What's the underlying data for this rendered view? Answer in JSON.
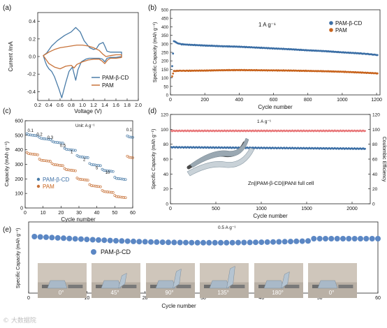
{
  "chart_data": [
    {
      "panel": "(a)",
      "type": "line",
      "xlabel": "Voltage (V)",
      "ylabel": "Current /mA",
      "xlim": [
        0.2,
        2.0
      ],
      "ylim": [
        -0.5,
        0.5
      ],
      "xticks": [
        "0.2",
        "0.4",
        "0.6",
        "0.8",
        "1.0",
        "1.2",
        "1.4",
        "1.6",
        "1.8",
        "2.0"
      ],
      "yticks": [
        "-0.4",
        "-0.2",
        "0.0",
        "0.2",
        "0.4"
      ],
      "legend": "bottom-right",
      "series": [
        {
          "name": "PAM-β-CD",
          "color": "#4a7ca8",
          "x": [
            0.3,
            0.36,
            0.45,
            0.55,
            0.68,
            0.8,
            0.88,
            0.96,
            1.03,
            1.08,
            1.13,
            1.2,
            1.25,
            1.3,
            1.37,
            1.4,
            1.44,
            1.5,
            1.6,
            1.7,
            1.7,
            1.6,
            1.5,
            1.44,
            1.4,
            1.36,
            1.3,
            1.24,
            1.18,
            1.12,
            1.06,
            0.98,
            0.92,
            0.88,
            0.82,
            0.76,
            0.7,
            0.63,
            0.58,
            0.54,
            0.5,
            0.45,
            0.4,
            0.36,
            0.33,
            0.3
          ],
          "y": [
            0.01,
            0.04,
            0.12,
            0.18,
            0.24,
            0.28,
            0.33,
            0.28,
            0.18,
            0.14,
            0.1,
            0.08,
            0.09,
            0.14,
            0.16,
            0.12,
            0.06,
            0.05,
            0.05,
            0.05,
            0.0,
            -0.01,
            -0.01,
            -0.02,
            -0.06,
            -0.03,
            -0.02,
            -0.02,
            -0.02,
            -0.02,
            -0.03,
            -0.06,
            -0.15,
            -0.27,
            -0.12,
            -0.17,
            -0.3,
            -0.47,
            -0.37,
            -0.3,
            -0.23,
            -0.17,
            -0.14,
            -0.1,
            -0.05,
            0.01
          ]
        },
        {
          "name": "PAM",
          "color": "#c8733a",
          "x": [
            0.3,
            0.4,
            0.5,
            0.6,
            0.7,
            0.8,
            0.9,
            1.0,
            1.1,
            1.2,
            1.3,
            1.36,
            1.42,
            1.5,
            1.6,
            1.7,
            1.7,
            1.6,
            1.5,
            1.45,
            1.4,
            1.35,
            1.3,
            1.2,
            1.1,
            1.0,
            0.9,
            0.85,
            0.8,
            0.7,
            0.6,
            0.5,
            0.4,
            0.3
          ],
          "y": [
            0.01,
            0.05,
            0.08,
            0.1,
            0.11,
            0.12,
            0.13,
            0.13,
            0.12,
            0.1,
            0.07,
            0.03,
            0.0,
            0.01,
            0.02,
            0.02,
            -0.01,
            -0.02,
            -0.02,
            -0.04,
            -0.08,
            -0.05,
            -0.03,
            -0.03,
            -0.04,
            -0.06,
            -0.09,
            -0.13,
            -0.1,
            -0.11,
            -0.14,
            -0.12,
            -0.08,
            0.01
          ]
        }
      ]
    },
    {
      "panel": "(b)",
      "type": "scatter",
      "xlabel": "Cycle number",
      "ylabel": "Specific Capacity (mAh g⁻¹)",
      "xlim": [
        0,
        1220
      ],
      "ylim": [
        0,
        500
      ],
      "xticks": [
        "0",
        "200",
        "400",
        "600",
        "800",
        "1000",
        "1200"
      ],
      "yticks": [
        "0",
        "50",
        "100",
        "150",
        "200",
        "250",
        "300",
        "350",
        "400",
        "450",
        "500"
      ],
      "annotation": "1 A g⁻¹",
      "legend": "top-right",
      "series": [
        {
          "name": "PAM-β-CD",
          "color": "#3b6ea5",
          "x": [
            10,
            20,
            40,
            60,
            100,
            200,
            300,
            400,
            500,
            600,
            700,
            800,
            900,
            1000,
            1100,
            1150,
            1200,
            1210
          ],
          "y": [
            170,
            315,
            305,
            298,
            295,
            290,
            286,
            283,
            278,
            273,
            268,
            262,
            257,
            250,
            244,
            240,
            235,
            233
          ]
        },
        {
          "name": "PAM",
          "color": "#c8641e",
          "x": [
            10,
            20,
            50,
            100,
            200,
            300,
            400,
            500,
            600,
            700,
            800,
            900,
            1000,
            1100,
            1200,
            1210
          ],
          "y": [
            110,
            140,
            142,
            142,
            143,
            145,
            146,
            145,
            144,
            143,
            141,
            139,
            136,
            132,
            127,
            125
          ]
        }
      ]
    },
    {
      "panel": "(c)",
      "type": "scatter",
      "xlabel": "Cycle number",
      "ylabel": "Capacity (mAh g⁻¹)",
      "xlim": [
        0,
        60
      ],
      "ylim": [
        0,
        600
      ],
      "xticks": [
        "0",
        "10",
        "20",
        "30",
        "40",
        "50",
        "60"
      ],
      "yticks": [
        "0",
        "100",
        "200",
        "300",
        "400",
        "500",
        "600"
      ],
      "annotation": "Unit: A g⁻¹",
      "rate_labels": [
        {
          "text": "0.1",
          "x": 3,
          "y": 505
        },
        {
          "text": "0.2",
          "x": 8,
          "y": 478
        },
        {
          "text": "0.3",
          "x": 14,
          "y": 455
        },
        {
          "text": "0.5",
          "x": 21,
          "y": 400
        },
        {
          "text": "1",
          "x": 26,
          "y": 357
        },
        {
          "text": "2",
          "x": 33,
          "y": 305
        },
        {
          "text": "5",
          "x": 40,
          "y": 248
        },
        {
          "text": "10",
          "x": 46,
          "y": 215
        },
        {
          "text": "0.1",
          "x": 58,
          "y": 510
        }
      ],
      "legend": "bottom-left",
      "series": [
        {
          "name": "PAM-β-CD",
          "color": "#4a7ca8",
          "levels": [
            505,
            480,
            455,
            405,
            355,
            300,
            260,
            205,
            490
          ]
        },
        {
          "name": "PAM",
          "color": "#c8733a",
          "levels": [
            375,
            330,
            300,
            265,
            200,
            155,
            115,
            80,
            350
          ]
        }
      ]
    },
    {
      "panel": "(d)",
      "type": "scatter",
      "xlabel": "Cycle number",
      "ylabel": "Specific Capacity (mAh g⁻¹)",
      "y2label": "Coulombic Efficiency",
      "xlim": [
        0,
        2200
      ],
      "ylim": [
        0,
        120
      ],
      "y2lim": [
        0,
        120
      ],
      "xticks": [
        "0",
        "500",
        "1000",
        "1500",
        "2000"
      ],
      "yticks": [
        "0",
        "20",
        "40",
        "60",
        "80",
        "100",
        "120"
      ],
      "y2ticks": [
        "0",
        "20",
        "40",
        "60",
        "80",
        "100",
        "120"
      ],
      "annotation": "1 A g⁻¹",
      "cell_label": "Zn||PAM-β-CD||PANI full cell",
      "series": [
        {
          "name": "Coulombic efficiency",
          "color": "#e8787a",
          "y": [
            98,
            98
          ]
        },
        {
          "name": "Capacity",
          "color": "#3b6ea5",
          "y": [
            76,
            74
          ]
        }
      ]
    },
    {
      "panel": "(e)",
      "type": "scatter",
      "xlabel": "Cycle number",
      "ylabel": "Specific Capacity (mAh g⁻¹)",
      "xlim": [
        0,
        60
      ],
      "xticks": [
        "0",
        "10",
        "20",
        "30",
        "40",
        "50",
        "60"
      ],
      "annotation": "0.5 A g⁻¹",
      "legend": "PAM-β-CD",
      "series": [
        {
          "name": "PAM-β-CD",
          "color": "#5b87c4",
          "x_start": 1,
          "x_end": 60,
          "y_rel": [
            0.92,
            0.9,
            0.86,
            0.86,
            0.9
          ]
        }
      ],
      "bend_angles": [
        "0°",
        "45°",
        "90°",
        "135°",
        "180°",
        "0°"
      ]
    }
  ],
  "panel_labels": [
    "(a)",
    "(b)",
    "(c)",
    "(d)",
    "(e)"
  ],
  "watermark": "© 大数据院"
}
